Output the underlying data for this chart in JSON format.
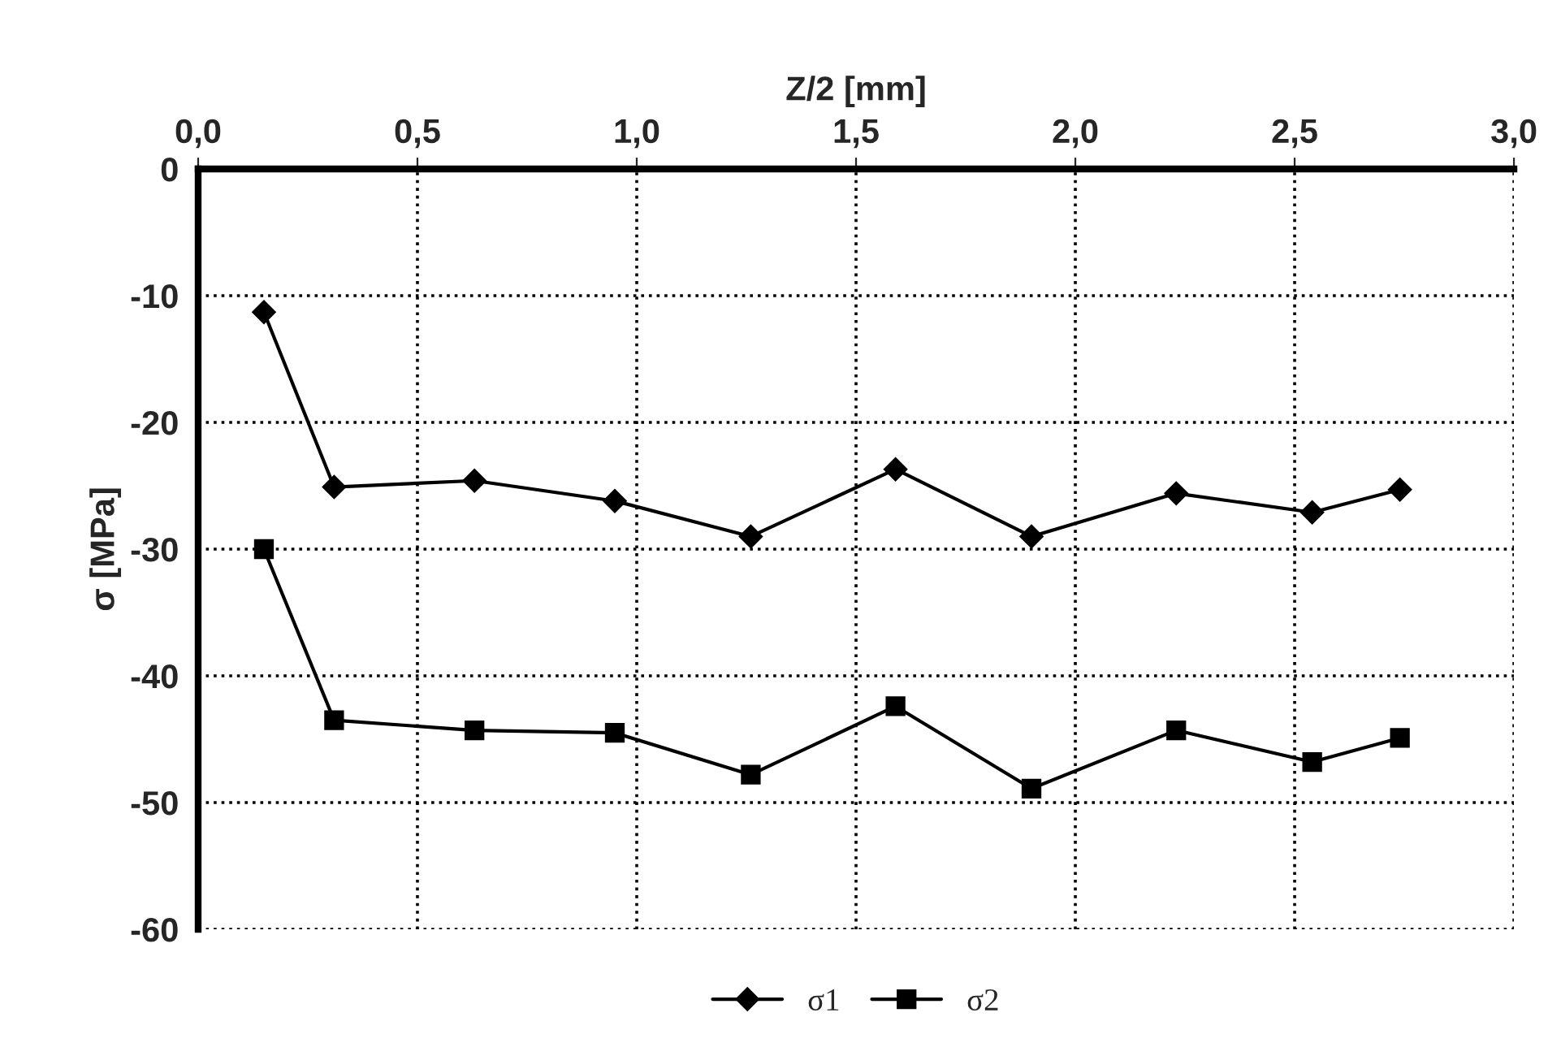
{
  "chart_data": {
    "type": "line",
    "xlabel": "Z/2 [mm]",
    "ylabel": "σ [MPa]",
    "xlim": [
      0,
      3
    ],
    "xticks": [
      {
        "value": 0,
        "label": "0,0"
      },
      {
        "value": 0.5,
        "label": "0,5"
      },
      {
        "value": 1,
        "label": "1,0"
      },
      {
        "value": 1.5,
        "label": "1,5"
      },
      {
        "value": 2,
        "label": "2,0"
      },
      {
        "value": 2.5,
        "label": "2,5"
      },
      {
        "value": 3,
        "label": "3,0"
      }
    ],
    "ylim": [
      -60,
      0
    ],
    "yticks": [
      -60,
      -50,
      -40,
      -30,
      -20,
      -10,
      0
    ],
    "x": [
      0.15,
      0.31,
      0.63,
      0.95,
      1.26,
      1.59,
      1.9,
      2.23,
      2.54,
      2.74
    ],
    "series": [
      {
        "name": "σ1",
        "color": "#000000",
        "marker": "diamond",
        "values": [
          -11.3,
          -25.1,
          -24.6,
          -26.2,
          -29.0,
          -23.7,
          -29.0,
          -25.6,
          -27.1,
          -25.3
        ]
      },
      {
        "name": "σ2",
        "color": "#000000",
        "marker": "square",
        "values": [
          -30.0,
          -43.5,
          -44.3,
          -44.5,
          -47.8,
          -42.4,
          -48.9,
          -44.3,
          -46.8,
          -44.9
        ]
      }
    ],
    "grid": true,
    "legend": "bottom",
    "line_style": "solid"
  }
}
